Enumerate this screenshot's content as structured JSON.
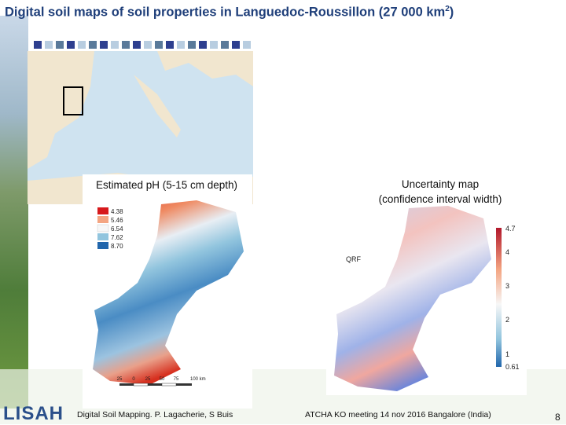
{
  "title": {
    "main": "Digital soil maps of soil properties in Languedoc-Roussillon (27 000 km",
    "sup": "2",
    "end": ")"
  },
  "ph_map": {
    "label": "Estimated pH (5-15 cm depth)",
    "legend": [
      "4.38",
      "5.46",
      "6.54",
      "7.62",
      "8.70"
    ],
    "scale": [
      "25",
      "0",
      "25",
      "50",
      "75",
      "100 km"
    ]
  },
  "uncertainty_map": {
    "label_line1": "Uncertainty map",
    "label_line2": "(confidence interval width)",
    "method": "QRF",
    "colorbar": [
      "4.7",
      "4",
      "3",
      "2",
      "1",
      "0.61"
    ]
  },
  "footer": {
    "logo": "LISAH",
    "left": "Digital Soil Mapping. P. Lagacherie, S Buis",
    "center": "ATCHA KO meeting 14 nov 2016 Bangalore (India)",
    "page": "8"
  }
}
